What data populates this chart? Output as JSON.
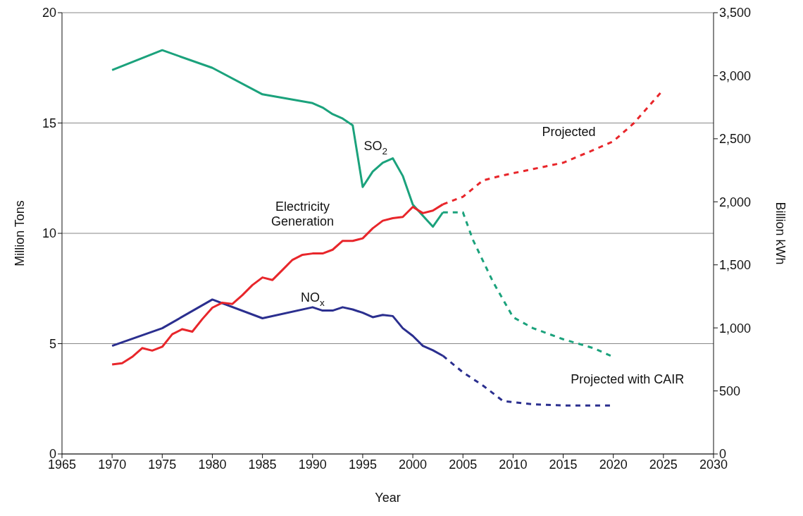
{
  "chart_data": {
    "type": "line",
    "xlabel": "Year",
    "ylabel": "Million Tons",
    "y2label": "Billion kWh",
    "xlim": [
      1965,
      2030
    ],
    "xticks": [
      1965,
      1970,
      1975,
      1980,
      1985,
      1990,
      1995,
      2000,
      2005,
      2010,
      2015,
      2020,
      2025,
      2030
    ],
    "ylim": [
      0,
      20
    ],
    "yticks": [
      0,
      5,
      10,
      15,
      20
    ],
    "y2lim": [
      0,
      3500
    ],
    "y2ticks": [
      0,
      500,
      {
        "value": 1000,
        "label": "1,000"
      },
      {
        "value": 1500,
        "label": "1,500"
      },
      {
        "value": 2000,
        "label": "2,000"
      },
      {
        "value": 2500,
        "label": "2,500"
      },
      {
        "value": 3000,
        "label": "3,000"
      },
      {
        "value": 3500,
        "label": "3,500"
      }
    ],
    "grid": "y",
    "legend": false,
    "marker": "none",
    "series": [
      {
        "name": "SO$_{2}$",
        "color": "#1ba27c",
        "line_style": "solid",
        "x": [
          1970,
          1975,
          1980,
          1985,
          1990,
          1991,
          1992,
          1993,
          1994,
          1995,
          1996,
          1997,
          1998,
          1999,
          2000,
          2001,
          2002,
          2003
        ],
        "values": [
          17.4,
          18.3,
          17.5,
          16.3,
          15.9,
          15.7,
          15.4,
          15.2,
          14.9,
          12.1,
          12.8,
          13.2,
          13.4,
          12.6,
          11.3,
          10.8,
          10.3,
          10.95
        ]
      },
      {
        "name": "Projected with CAIR",
        "color": "#1ba27c",
        "line_style": "dashed",
        "x": [
          2003,
          2005,
          2006,
          2008,
          2010,
          2012,
          2015,
          2018,
          2020
        ],
        "values": [
          10.95,
          10.95,
          9.7,
          7.8,
          6.2,
          5.7,
          5.2,
          4.8,
          4.4
        ]
      },
      {
        "name": "NO$_{x}$",
        "color": "#2b2f8f",
        "line_style": "solid",
        "x": [
          1970,
          1975,
          1980,
          1985,
          1990,
          1991,
          1992,
          1993,
          1994,
          1995,
          1996,
          1997,
          1998,
          1999,
          2000,
          2001,
          2002,
          2003
        ],
        "values": [
          4.9,
          5.7,
          7.0,
          6.15,
          6.65,
          6.5,
          6.5,
          6.65,
          6.55,
          6.4,
          6.2,
          6.3,
          6.25,
          5.7,
          5.35,
          4.9,
          4.7,
          4.45
        ]
      },
      {
        "color": "#2b2f8f",
        "line_style": "dashed",
        "x": [
          2003,
          2005,
          2007,
          2009,
          2010,
          2012,
          2015,
          2020
        ],
        "values": [
          4.45,
          3.7,
          3.1,
          2.4,
          2.35,
          2.25,
          2.2,
          2.2
        ]
      },
      {
        "name": "Electricity\nGeneration",
        "color": "#e8262b",
        "line_style": "solid",
        "axis": "y2",
        "x": [
          1970,
          1971,
          1972,
          1973,
          1974,
          1975,
          1976,
          1977,
          1978,
          1979,
          1980,
          1981,
          1982,
          1983,
          1984,
          1985,
          1986,
          1987,
          1988,
          1989,
          1990,
          1991,
          1992,
          1993,
          1994,
          1995,
          1996,
          1997,
          1998,
          1999,
          2000,
          2001,
          2002,
          2003
        ],
        "values": [
          710,
          720,
          770,
          840,
          820,
          850,
          950,
          990,
          970,
          1070,
          1160,
          1200,
          1190,
          1260,
          1340,
          1400,
          1380,
          1460,
          1540,
          1580,
          1590,
          1590,
          1620,
          1690,
          1690,
          1710,
          1790,
          1850,
          1870,
          1880,
          1960,
          1910,
          1930,
          1980
        ]
      },
      {
        "name": "Projected",
        "color": "#e8262b",
        "line_style": "dashed",
        "axis": "y2",
        "x": [
          2003,
          2005,
          2007,
          2009,
          2012,
          2015,
          2018,
          2020,
          2022,
          2025
        ],
        "values": [
          1980,
          2040,
          2170,
          2210,
          2260,
          2310,
          2410,
          2480,
          2620,
          2890
        ]
      }
    ]
  }
}
